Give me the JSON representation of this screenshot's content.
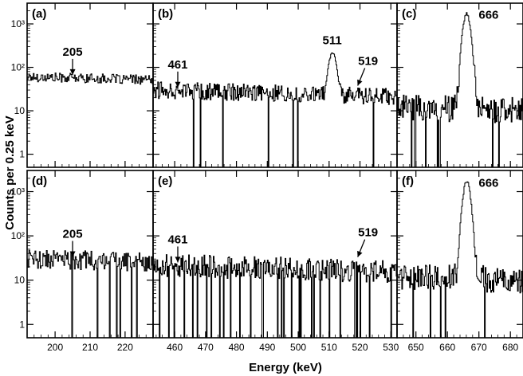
{
  "chart_data": {
    "type": "line",
    "title": "",
    "xlabel": "Energy (keV)",
    "ylabel": "Counts per 0.25 keV",
    "yscale": "log",
    "ylim": [
      0.5,
      3000
    ],
    "y_ticks": [
      {
        "value": 1,
        "label": "1"
      },
      {
        "value": 10,
        "label": "10"
      },
      {
        "value": 100,
        "label": "10²"
      },
      {
        "value": 1000,
        "label": "10³"
      }
    ],
    "columns": [
      {
        "xlim": [
          192,
          228
        ],
        "x_ticks": [
          200,
          210,
          220
        ]
      },
      {
        "xlim": [
          453,
          532
        ],
        "x_ticks": [
          460,
          470,
          480,
          490,
          500,
          510,
          520,
          530
        ]
      },
      {
        "xlim": [
          644,
          684
        ],
        "x_ticks": [
          650,
          660,
          670,
          680
        ]
      }
    ],
    "panels": [
      {
        "label": "(a)",
        "row": 0,
        "col": 0,
        "baseline": 60,
        "noise": 0.25,
        "dropouts": 0,
        "peaks": [],
        "annotations": [
          {
            "text": "205",
            "x": 205
          }
        ]
      },
      {
        "label": "(b)",
        "row": 0,
        "col": 1,
        "baseline": 30,
        "noise": 0.45,
        "dropouts": 0.015,
        "peaks": [
          {
            "center": 511,
            "amp": 200,
            "sigma": 1.0
          },
          {
            "center": 519,
            "amp": 10,
            "sigma": 0.8
          }
        ],
        "annotations": [
          {
            "text": "461",
            "x": 461
          },
          {
            "text": "511",
            "x": 511
          },
          {
            "text": "519",
            "x": 519
          }
        ]
      },
      {
        "label": "(c)",
        "row": 0,
        "col": 2,
        "baseline": 12,
        "noise": 0.7,
        "dropouts": 0.05,
        "peaks": [
          {
            "center": 666,
            "amp": 1700,
            "sigma": 0.95
          }
        ],
        "annotations": [
          {
            "text": "666",
            "x": 666
          }
        ]
      },
      {
        "label": "(d)",
        "row": 1,
        "col": 0,
        "baseline": 30,
        "noise": 0.5,
        "dropouts": 0.03,
        "peaks": [],
        "annotations": [
          {
            "text": "205",
            "x": 205
          }
        ]
      },
      {
        "label": "(e)",
        "row": 1,
        "col": 1,
        "baseline": 22,
        "noise": 0.6,
        "dropouts": 0.09,
        "peaks": [
          {
            "center": 519,
            "amp": 12,
            "sigma": 0.8
          }
        ],
        "annotations": [
          {
            "text": "461",
            "x": 461
          },
          {
            "text": "519",
            "x": 519
          }
        ]
      },
      {
        "label": "(f)",
        "row": 1,
        "col": 2,
        "baseline": 12,
        "noise": 0.7,
        "dropouts": 0.06,
        "peaks": [
          {
            "center": 666,
            "amp": 1650,
            "sigma": 0.95
          }
        ],
        "annotations": [
          {
            "text": "666",
            "x": 666
          }
        ]
      }
    ],
    "grid": false,
    "legend": "none"
  }
}
